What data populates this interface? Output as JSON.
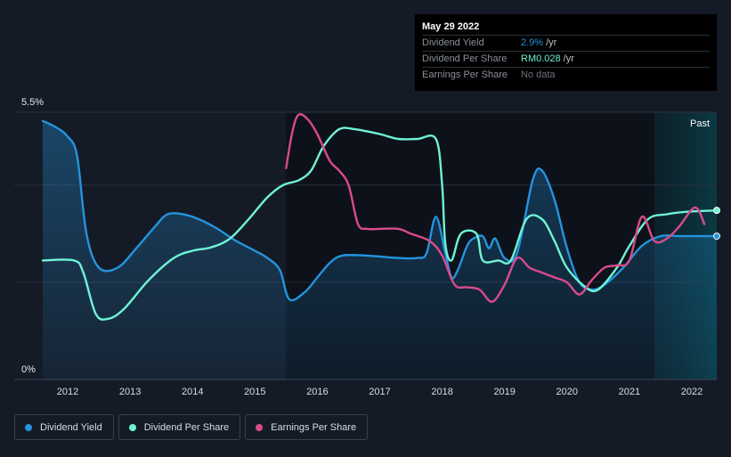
{
  "tooltip": {
    "date": "May 29 2022",
    "rows": [
      {
        "label": "Dividend Yield",
        "value": "2.9%",
        "unit": "/yr"
      },
      {
        "label": "Dividend Per Share",
        "value": "RM0.028",
        "unit": "/yr"
      },
      {
        "label": "Earnings Per Share",
        "value": "No data",
        "unit": ""
      }
    ]
  },
  "legend": [
    {
      "label": "Dividend Yield",
      "color": "#2394df"
    },
    {
      "label": "Dividend Per Share",
      "color": "#6ff3d5"
    },
    {
      "label": "Earnings Per Share",
      "color": "#d94a8c"
    }
  ],
  "colors": {
    "background": "#151b26",
    "plot_highlight": "#0d1119",
    "past_band": "#0c2a33",
    "dividend_yield": "#2394df",
    "dividend_per_share": "#6ff3d5",
    "earnings_per_share": "#d94a8c",
    "grid": "#2c323c"
  },
  "chart_data": {
    "type": "line",
    "y_tick_labels": [
      "5.5%",
      "0%"
    ],
    "ylim": [
      0,
      5.5
    ],
    "xlim": [
      2011.6,
      2022.4
    ],
    "x_ticks": [
      2012,
      2013,
      2014,
      2015,
      2016,
      2017,
      2018,
      2019,
      2020,
      2021,
      2022
    ],
    "past_label": "Past",
    "past_start": 2021.4,
    "highlight_start": 2015.5,
    "series": [
      {
        "name": "Dividend Yield",
        "unit": "%",
        "points": [
          [
            2011.6,
            5.32
          ],
          [
            2011.8,
            5.2
          ],
          [
            2012.0,
            5.0
          ],
          [
            2012.15,
            4.6
          ],
          [
            2012.3,
            3.0
          ],
          [
            2012.5,
            2.3
          ],
          [
            2012.8,
            2.3
          ],
          [
            2013.1,
            2.7
          ],
          [
            2013.4,
            3.15
          ],
          [
            2013.6,
            3.4
          ],
          [
            2013.85,
            3.4
          ],
          [
            2014.1,
            3.3
          ],
          [
            2014.4,
            3.1
          ],
          [
            2014.7,
            2.85
          ],
          [
            2015.0,
            2.65
          ],
          [
            2015.2,
            2.5
          ],
          [
            2015.4,
            2.25
          ],
          [
            2015.55,
            1.65
          ],
          [
            2015.8,
            1.8
          ],
          [
            2016.0,
            2.1
          ],
          [
            2016.2,
            2.4
          ],
          [
            2016.4,
            2.55
          ],
          [
            2016.8,
            2.55
          ],
          [
            2017.3,
            2.5
          ],
          [
            2017.6,
            2.5
          ],
          [
            2017.75,
            2.6
          ],
          [
            2017.9,
            3.35
          ],
          [
            2018.05,
            2.6
          ],
          [
            2018.15,
            2.1
          ],
          [
            2018.25,
            2.25
          ],
          [
            2018.4,
            2.75
          ],
          [
            2018.5,
            2.9
          ],
          [
            2018.65,
            2.95
          ],
          [
            2018.75,
            2.7
          ],
          [
            2018.85,
            2.9
          ],
          [
            2019.0,
            2.5
          ],
          [
            2019.2,
            2.6
          ],
          [
            2019.45,
            4.1
          ],
          [
            2019.6,
            4.3
          ],
          [
            2019.8,
            3.7
          ],
          [
            2020.0,
            2.7
          ],
          [
            2020.2,
            2.0
          ],
          [
            2020.4,
            1.85
          ],
          [
            2020.6,
            1.95
          ],
          [
            2020.9,
            2.3
          ],
          [
            2021.2,
            2.75
          ],
          [
            2021.5,
            2.95
          ],
          [
            2021.8,
            2.95
          ],
          [
            2022.0,
            2.95
          ],
          [
            2022.4,
            2.95
          ]
        ]
      },
      {
        "name": "Dividend Per Share",
        "unit": "%",
        "points": [
          [
            2011.6,
            2.45
          ],
          [
            2012.1,
            2.45
          ],
          [
            2012.25,
            2.2
          ],
          [
            2012.45,
            1.35
          ],
          [
            2012.65,
            1.25
          ],
          [
            2012.9,
            1.45
          ],
          [
            2013.3,
            2.05
          ],
          [
            2013.7,
            2.5
          ],
          [
            2014.0,
            2.65
          ],
          [
            2014.3,
            2.72
          ],
          [
            2014.6,
            2.9
          ],
          [
            2014.9,
            3.3
          ],
          [
            2015.2,
            3.75
          ],
          [
            2015.45,
            4.0
          ],
          [
            2015.7,
            4.1
          ],
          [
            2015.9,
            4.3
          ],
          [
            2016.1,
            4.8
          ],
          [
            2016.35,
            5.15
          ],
          [
            2016.6,
            5.15
          ],
          [
            2017.0,
            5.05
          ],
          [
            2017.3,
            4.95
          ],
          [
            2017.6,
            4.95
          ],
          [
            2017.9,
            4.95
          ],
          [
            2018.0,
            4.0
          ],
          [
            2018.05,
            2.8
          ],
          [
            2018.15,
            2.45
          ],
          [
            2018.3,
            3.0
          ],
          [
            2018.55,
            3.0
          ],
          [
            2018.65,
            2.45
          ],
          [
            2018.9,
            2.45
          ],
          [
            2019.1,
            2.45
          ],
          [
            2019.35,
            3.3
          ],
          [
            2019.6,
            3.3
          ],
          [
            2019.8,
            2.85
          ],
          [
            2020.0,
            2.3
          ],
          [
            2020.3,
            1.9
          ],
          [
            2020.5,
            1.85
          ],
          [
            2020.8,
            2.3
          ],
          [
            2021.0,
            2.75
          ],
          [
            2021.3,
            3.3
          ],
          [
            2021.6,
            3.4
          ],
          [
            2021.9,
            3.45
          ],
          [
            2022.4,
            3.48
          ]
        ]
      },
      {
        "name": "Earnings Per Share",
        "unit": "%",
        "points": [
          [
            2015.5,
            4.35
          ],
          [
            2015.6,
            5.1
          ],
          [
            2015.7,
            5.45
          ],
          [
            2015.85,
            5.35
          ],
          [
            2016.0,
            5.05
          ],
          [
            2016.2,
            4.5
          ],
          [
            2016.35,
            4.3
          ],
          [
            2016.5,
            4.0
          ],
          [
            2016.65,
            3.2
          ],
          [
            2016.8,
            3.1
          ],
          [
            2017.0,
            3.1
          ],
          [
            2017.3,
            3.1
          ],
          [
            2017.5,
            3.0
          ],
          [
            2017.8,
            2.85
          ],
          [
            2018.0,
            2.55
          ],
          [
            2018.2,
            1.95
          ],
          [
            2018.4,
            1.9
          ],
          [
            2018.6,
            1.85
          ],
          [
            2018.8,
            1.6
          ],
          [
            2019.0,
            1.95
          ],
          [
            2019.2,
            2.5
          ],
          [
            2019.4,
            2.3
          ],
          [
            2019.6,
            2.2
          ],
          [
            2019.8,
            2.1
          ],
          [
            2020.0,
            2.0
          ],
          [
            2020.2,
            1.75
          ],
          [
            2020.4,
            2.05
          ],
          [
            2020.6,
            2.3
          ],
          [
            2020.8,
            2.35
          ],
          [
            2021.0,
            2.45
          ],
          [
            2021.2,
            3.35
          ],
          [
            2021.4,
            2.85
          ],
          [
            2021.6,
            2.9
          ],
          [
            2021.8,
            3.15
          ],
          [
            2022.0,
            3.5
          ],
          [
            2022.1,
            3.5
          ],
          [
            2022.2,
            3.2
          ]
        ]
      }
    ]
  }
}
